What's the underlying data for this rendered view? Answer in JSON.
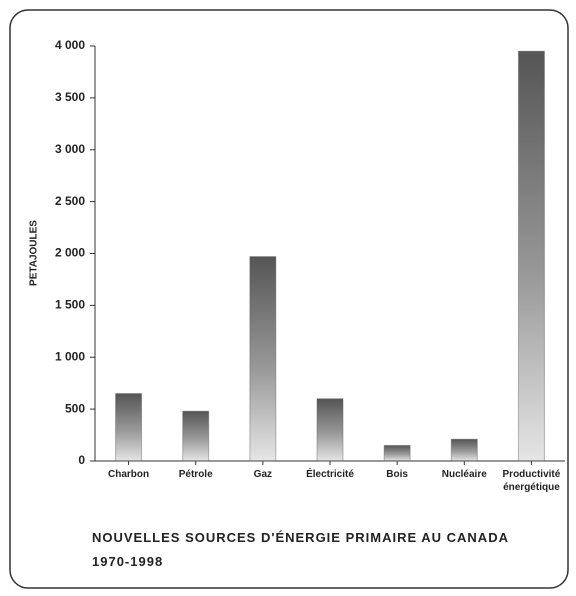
{
  "chart_data": {
    "type": "bar",
    "title": "NOUVELLES SOURCES D'ÉNERGIE PRIMAIRE AU CANADA",
    "subtitle": "1970-1998",
    "ylabel": "PETAJOULES",
    "categories": [
      "Charbon",
      "Pétrole",
      "Gaz",
      "Électricité",
      "Bois",
      "Nucléaire",
      "Productivité énergétique"
    ],
    "values": [
      650,
      480,
      1970,
      600,
      150,
      210,
      3950
    ],
    "color": "#555555",
    "ylim": [
      0,
      4000
    ],
    "yticks": [
      0,
      500,
      {
        "value": 1000,
        "label": "1 000"
      },
      {
        "value": 1500,
        "label": "1 500"
      },
      {
        "value": 2000,
        "label": "2 000"
      },
      {
        "value": 2500,
        "label": "2 500"
      },
      {
        "value": 3000,
        "label": "3 000"
      },
      {
        "value": 3500,
        "label": "3 500"
      },
      {
        "value": 4000,
        "label": "4 000"
      }
    ],
    "grid": false
  }
}
